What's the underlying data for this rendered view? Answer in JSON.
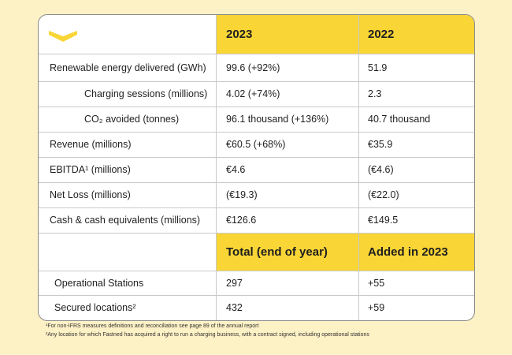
{
  "colors": {
    "accent": "#f9d535",
    "background": "#fdf1c6"
  },
  "logo": "fastned-chevron-logo",
  "table1": {
    "headers": [
      "2023",
      "2022"
    ],
    "rows": [
      {
        "label": "Renewable energy delivered (GWh)",
        "y2023": "99.6 (+92%)",
        "y2022": "51.9"
      },
      {
        "label": "Charging sessions (millions)",
        "y2023": "4.02 (+74%)",
        "y2022": "2.3"
      },
      {
        "label": "CO₂ avoided (tonnes)",
        "y2023": "96.1 thousand (+136%)",
        "y2022": "40.7 thousand"
      },
      {
        "label": "Revenue (millions)",
        "y2023": "€60.5 (+68%)",
        "y2022": "€35.9"
      },
      {
        "label": "EBITDA¹ (millions)",
        "y2023": "€4.6",
        "y2022": "(€4.6)"
      },
      {
        "label": "Net Loss (millions)",
        "y2023": "(€19.3)",
        "y2022": "(€22.0)"
      },
      {
        "label": "Cash & cash equivalents (millions)",
        "y2023": "€126.6",
        "y2022": "€149.5"
      }
    ]
  },
  "table2": {
    "headers": [
      "Total (end of year)",
      "Added in 2023"
    ],
    "rows": [
      {
        "label": "Operational Stations",
        "total": "297",
        "added": "+55"
      },
      {
        "label": "Secured locations²",
        "total": "432",
        "added": "+59"
      }
    ]
  },
  "footnotes": [
    "¹For non-IFRS measures definitions and reconciliation see page 89 of the annual report",
    "²Any location for which Fastned has acquired a right to run a charging business, with a contract signed, including operational stations"
  ]
}
